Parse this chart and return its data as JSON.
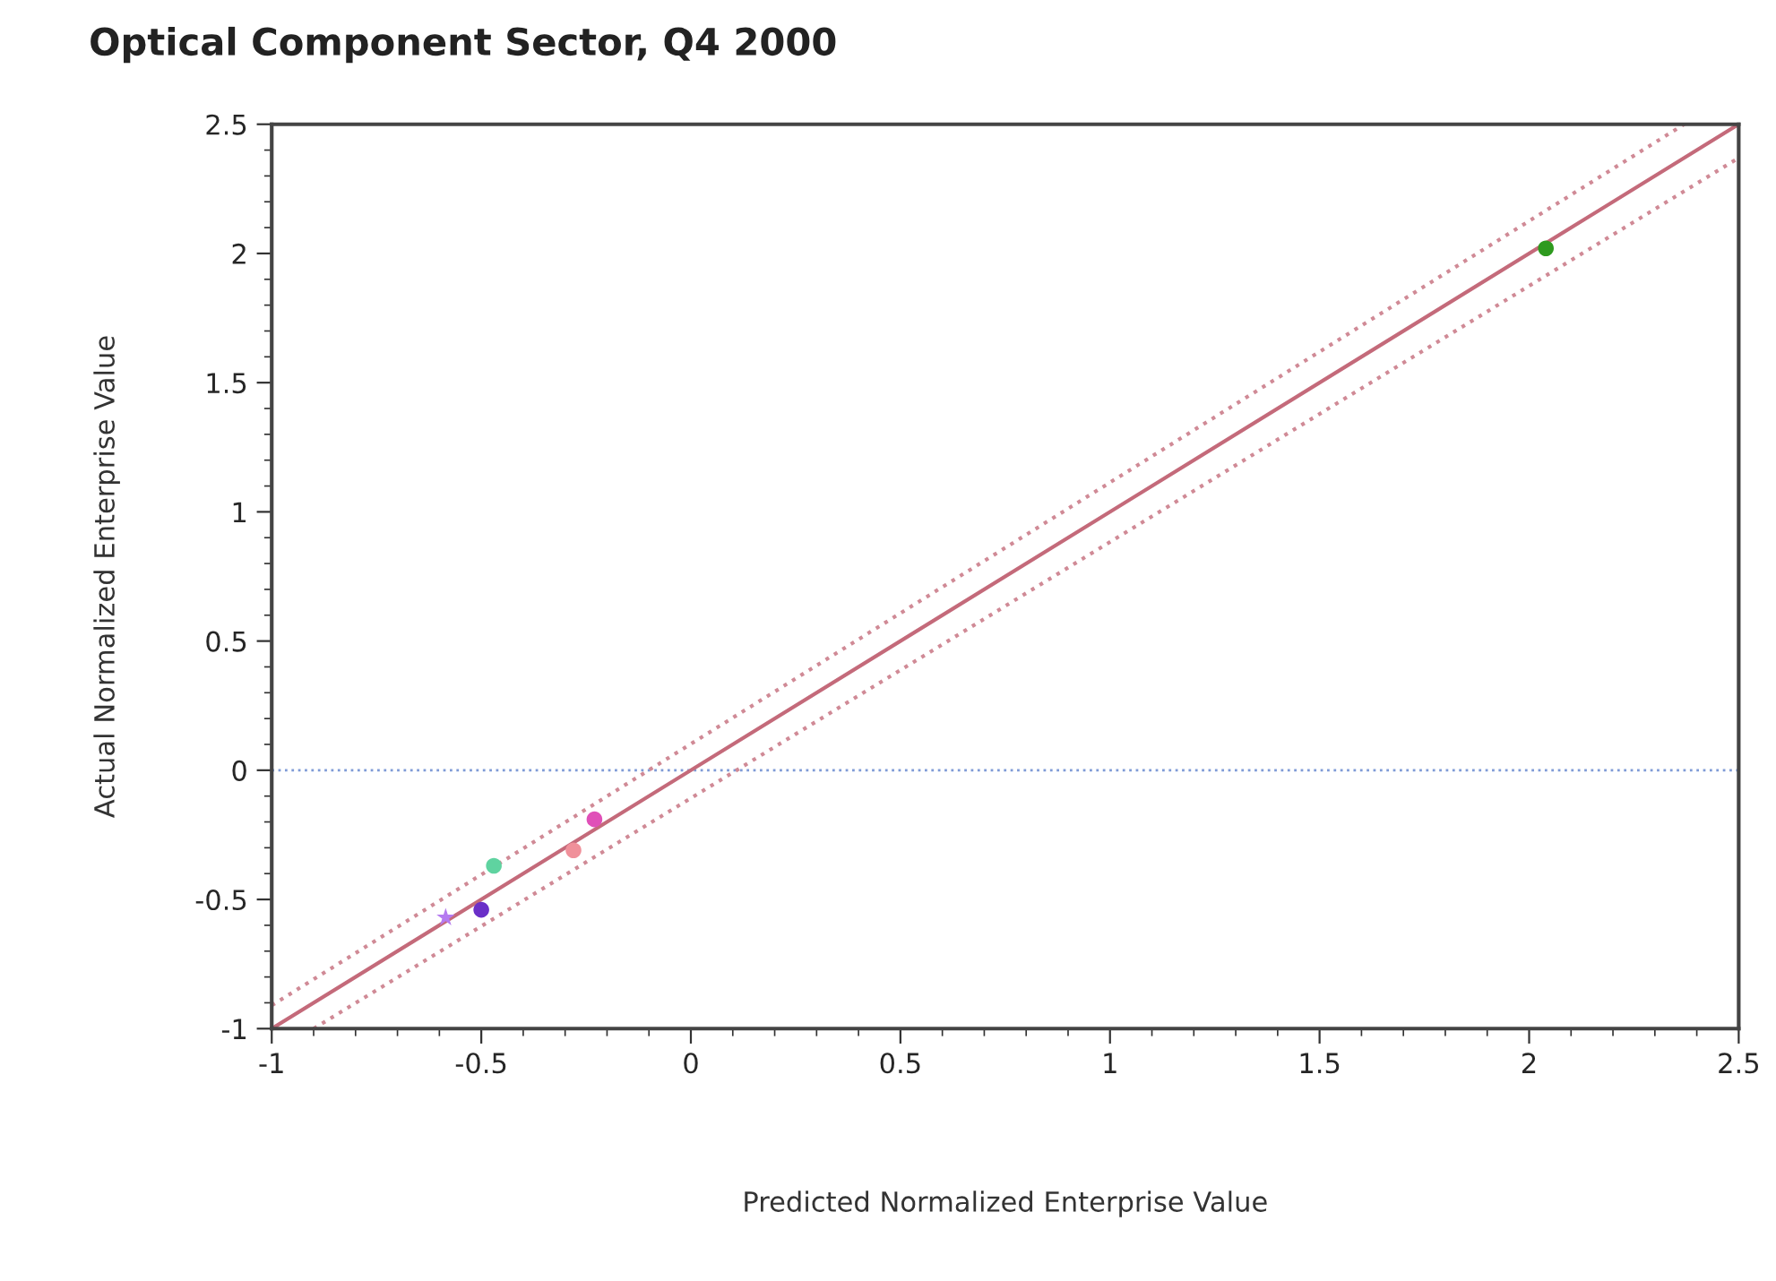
{
  "chart_data": {
    "type": "scatter",
    "title": "Optical Component Sector, Q4 2000",
    "xlabel": "Predicted Normalized Enterprise Value",
    "ylabel": "Actual Normalized Enterprise Value",
    "xlim": [
      -1,
      2.5
    ],
    "ylim": [
      -1,
      2.5
    ],
    "xticks": [
      -1,
      -0.5,
      0,
      0.5,
      1,
      1.5,
      2,
      2.5
    ],
    "yticks": [
      -1,
      -0.5,
      0,
      0.5,
      1,
      1.5,
      2,
      2.5
    ],
    "grid": false,
    "legend": false,
    "series": [
      {
        "type": "line",
        "color": "#c46a7a",
        "line_style": "solid",
        "x": [
          -1,
          2.5
        ],
        "values": [
          -1,
          2.5
        ]
      },
      {
        "type": "line",
        "color": "#d08a96",
        "line_style": "dotted",
        "x": [
          -1,
          2.37
        ],
        "values": [
          -0.91,
          2.5
        ]
      },
      {
        "type": "line",
        "color": "#d08a96",
        "line_style": "dotted",
        "x": [
          -0.9,
          2.5
        ],
        "values": [
          -1,
          2.37
        ]
      },
      {
        "marker": "star",
        "colors": [
          "#b57bf0"
        ],
        "x": [
          -0.585
        ],
        "values": [
          -0.57
        ]
      },
      {
        "marker": "circle",
        "colors": [
          "#6a2fc8",
          "#5fd3a0",
          "#f0909a",
          "#e050b8",
          "#2e9a1e"
        ],
        "x": [
          -0.5,
          -0.47,
          -0.28,
          -0.23,
          2.04
        ],
        "values": [
          -0.54,
          -0.37,
          -0.31,
          -0.19,
          2.02
        ]
      }
    ],
    "ref_lines": [
      {
        "axis": "y",
        "value": 0,
        "color": "#7f9bd6",
        "line_style": "dotted"
      }
    ]
  }
}
